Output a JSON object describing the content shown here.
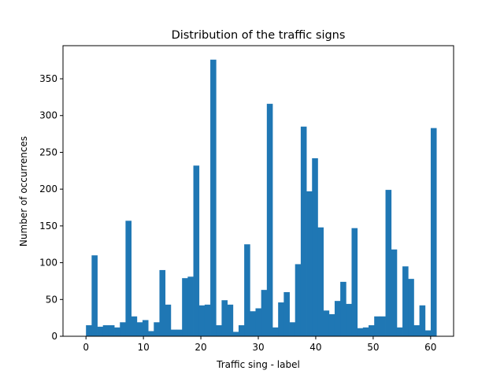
{
  "chart_data": {
    "type": "bar",
    "title": "Distribution of the traffic signs",
    "xlabel": "Traffic sing - label",
    "ylabel": "Number of occurrences",
    "xlim": [
      -4,
      64
    ],
    "ylim": [
      0,
      395
    ],
    "x_ticks": [
      0,
      10,
      20,
      30,
      40,
      50,
      60
    ],
    "y_ticks": [
      0,
      50,
      100,
      150,
      200,
      250,
      300,
      350
    ],
    "grid": false,
    "bar_color": "#1f77b4",
    "series": [
      {
        "categories": [
          0,
          1,
          2,
          3,
          4,
          5,
          6,
          7,
          8,
          9,
          10,
          11,
          12,
          13,
          14,
          15,
          16,
          17,
          18,
          19,
          20,
          21,
          22,
          23,
          24,
          25,
          26,
          27,
          28,
          29,
          30,
          31,
          32,
          33,
          34,
          35,
          36,
          37,
          38,
          39,
          40,
          41,
          42,
          43,
          44,
          45,
          46,
          47,
          48,
          49,
          50,
          51,
          52,
          53,
          54,
          55,
          56,
          57,
          58,
          59,
          60,
          61
        ],
        "values": [
          15,
          110,
          13,
          15,
          15,
          12,
          19,
          157,
          27,
          19,
          22,
          7,
          19,
          90,
          43,
          9,
          9,
          79,
          81,
          232,
          42,
          43,
          376,
          15,
          49,
          43,
          6,
          15,
          125,
          34,
          38,
          63,
          316,
          12,
          46,
          60,
          19,
          98,
          285,
          197,
          242,
          148,
          35,
          30,
          48,
          74,
          44,
          147,
          11,
          12,
          15,
          27,
          27,
          199,
          118,
          12,
          95,
          78,
          15,
          42,
          8,
          283
        ]
      }
    ]
  }
}
